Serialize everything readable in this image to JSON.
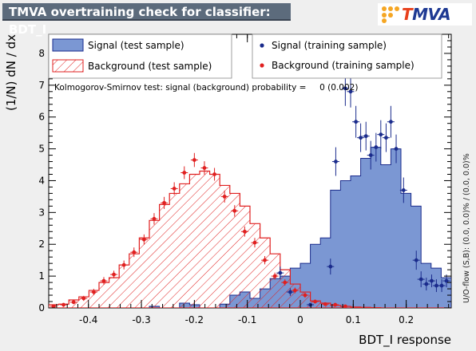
{
  "title": "TMVA overtraining check for classifier: BDT_I",
  "logo_text": "TMVA",
  "side_note": "U/O-flow (S,B): (0.0, 0.0)% / (0.0, 0.0)%",
  "ks_text": "Kolmogorov-Smirnov test: signal (background) probability =     0 (0.002)",
  "colors": {
    "signal_fill": "#7b97d3",
    "signal_line": "#1a2b8c",
    "background_line": "#e02020",
    "frame_bg": "#ffffff",
    "page_bg": "#efefef"
  },
  "chart_data": {
    "type": "bar",
    "xlabel": "BDT_I response",
    "ylabel": "(1/N) dN / dx",
    "xlim": [
      -0.475,
      0.285
    ],
    "ylim": [
      0,
      8.6
    ],
    "xticks": [
      "-0.4",
      "-0.3",
      "-0.2",
      "-0.1",
      "0",
      "0.1",
      "0.2"
    ],
    "yticks": [
      "0",
      "1",
      "2",
      "3",
      "4",
      "5",
      "6",
      "7",
      "8"
    ],
    "legend": {
      "signal_test": "Signal (test sample)",
      "background_test": "Background (test sample)",
      "signal_train": "Signal (training sample)",
      "background_train": "Background (training sample)"
    },
    "bin_edges": [
      -0.475,
      -0.456,
      -0.437,
      -0.418,
      -0.399,
      -0.38,
      -0.361,
      -0.342,
      -0.323,
      -0.304,
      -0.285,
      -0.266,
      -0.247,
      -0.228,
      -0.209,
      -0.19,
      -0.171,
      -0.152,
      -0.133,
      -0.114,
      -0.095,
      -0.076,
      -0.057,
      -0.038,
      -0.019,
      0.0,
      0.019,
      0.038,
      0.057,
      0.076,
      0.095,
      0.114,
      0.133,
      0.152,
      0.171,
      0.19,
      0.209,
      0.228,
      0.247,
      0.266,
      0.285
    ],
    "series": [
      {
        "name": "Signal (test sample)",
        "style": "filled-hist",
        "values": [
          0,
          0,
          0,
          0,
          0,
          0,
          0,
          0,
          0,
          0,
          0.05,
          0,
          0,
          0.15,
          0.1,
          0,
          0,
          0.12,
          0.4,
          0.5,
          0.3,
          0.6,
          0.92,
          1.0,
          1.25,
          1.4,
          2.0,
          2.2,
          3.7,
          4.0,
          4.15,
          4.7,
          5.05,
          4.5,
          5.0,
          3.6,
          3.2,
          1.4,
          1.25,
          0.95
        ]
      },
      {
        "name": "Background (test sample)",
        "style": "hatched-hist",
        "values": [
          0.1,
          0.12,
          0.25,
          0.35,
          0.55,
          0.8,
          0.95,
          1.35,
          1.7,
          2.2,
          2.75,
          3.25,
          3.6,
          3.9,
          4.2,
          4.3,
          4.2,
          3.85,
          3.6,
          3.2,
          2.65,
          2.2,
          1.7,
          1.2,
          0.75,
          0.5,
          0.22,
          0.15,
          0.08,
          0.05,
          0.03,
          0.02,
          0.01,
          0,
          0,
          0,
          0,
          0,
          0,
          0
        ]
      },
      {
        "name": "Signal (training sample)",
        "style": "points",
        "x": [
          -0.038,
          -0.019,
          0.019,
          0.057,
          0.067,
          0.085,
          0.095,
          0.105,
          0.114,
          0.124,
          0.133,
          0.143,
          0.152,
          0.162,
          0.171,
          0.181,
          0.195,
          0.219,
          0.228,
          0.238,
          0.248,
          0.257,
          0.267,
          0.276
        ],
        "y": [
          1.1,
          0.5,
          0.1,
          1.3,
          4.6,
          6.9,
          6.8,
          5.85,
          5.35,
          5.4,
          4.8,
          5.05,
          5.45,
          5.35,
          5.85,
          5.0,
          3.7,
          1.5,
          0.9,
          0.75,
          0.85,
          0.7,
          0.7,
          0.85
        ],
        "err": [
          0.2,
          0.12,
          0.05,
          0.25,
          0.45,
          0.55,
          0.5,
          0.5,
          0.45,
          0.45,
          0.45,
          0.45,
          0.45,
          0.45,
          0.5,
          0.45,
          0.4,
          0.3,
          0.25,
          0.2,
          0.2,
          0.2,
          0.2,
          0.2
        ]
      },
      {
        "name": "Background (training sample)",
        "style": "points",
        "x": [
          -0.466,
          -0.447,
          -0.428,
          -0.409,
          -0.39,
          -0.371,
          -0.352,
          -0.333,
          -0.314,
          -0.295,
          -0.276,
          -0.257,
          -0.238,
          -0.219,
          -0.2,
          -0.181,
          -0.162,
          -0.143,
          -0.124,
          -0.105,
          -0.086,
          -0.067,
          -0.048,
          -0.029,
          -0.01,
          0.009,
          0.028,
          0.047,
          0.066,
          0.085
        ],
        "y": [
          0.05,
          0.1,
          0.18,
          0.3,
          0.5,
          0.85,
          1.05,
          1.35,
          1.75,
          2.15,
          2.8,
          3.3,
          3.75,
          4.25,
          4.65,
          4.4,
          4.2,
          3.5,
          3.05,
          2.4,
          2.05,
          1.5,
          1.0,
          0.8,
          0.55,
          0.4,
          0.2,
          0.12,
          0.1,
          0.05
        ],
        "err": [
          0.04,
          0.05,
          0.06,
          0.08,
          0.1,
          0.12,
          0.12,
          0.14,
          0.15,
          0.16,
          0.18,
          0.19,
          0.2,
          0.2,
          0.22,
          0.21,
          0.2,
          0.19,
          0.18,
          0.16,
          0.15,
          0.13,
          0.11,
          0.1,
          0.09,
          0.08,
          0.06,
          0.05,
          0.05,
          0.04
        ]
      }
    ]
  }
}
